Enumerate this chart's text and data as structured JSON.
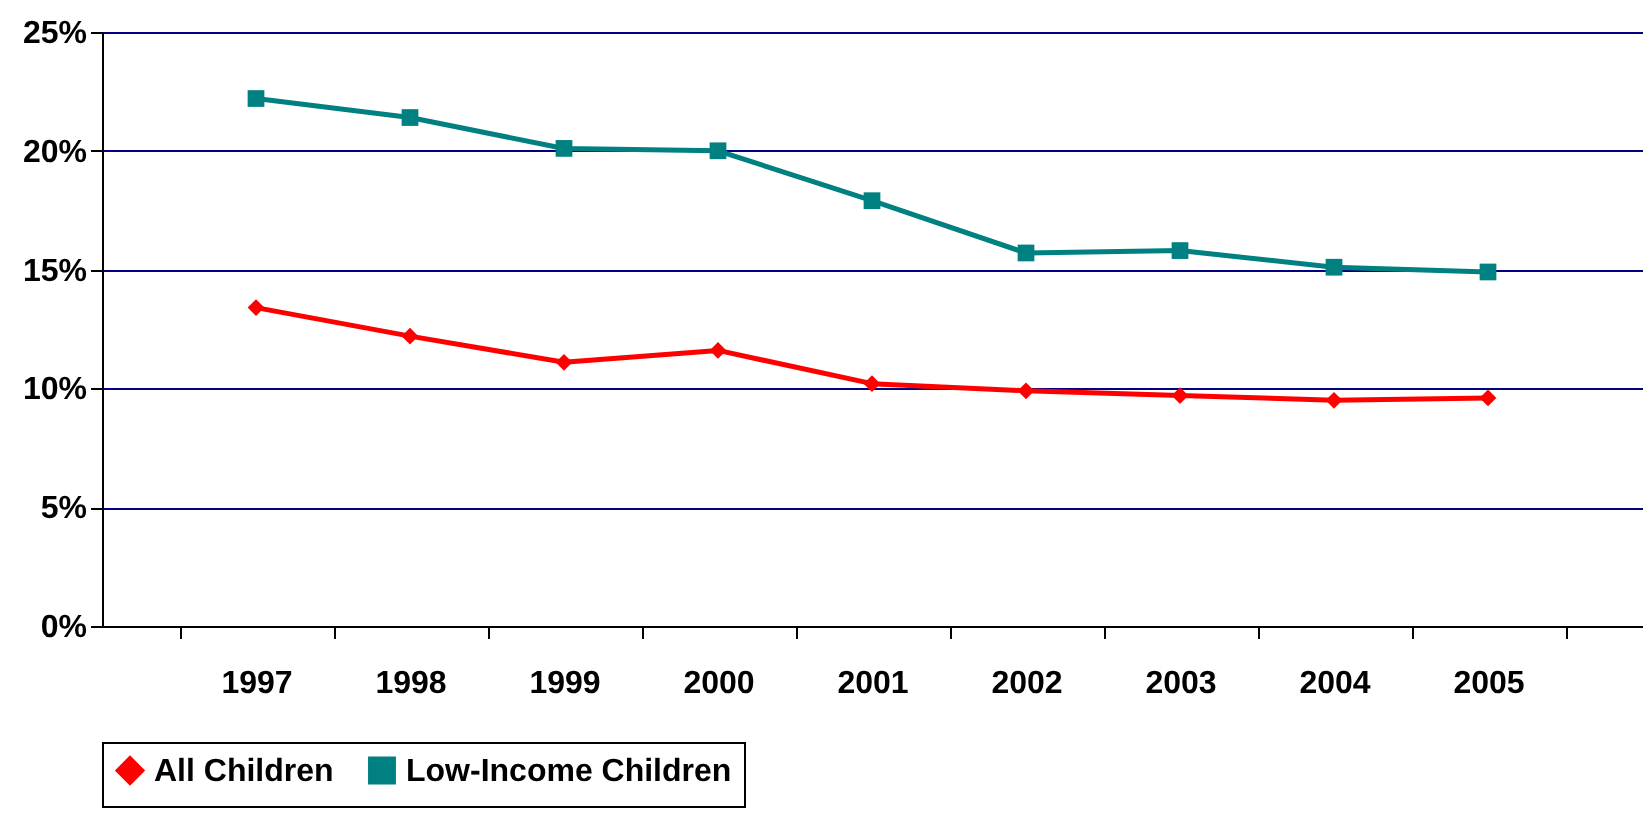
{
  "chart_data": {
    "type": "line",
    "categories": [
      "1997",
      "1998",
      "1999",
      "2000",
      "2001",
      "2002",
      "2003",
      "2004",
      "2005"
    ],
    "series": [
      {
        "name": "All Children",
        "color": "#ff0000",
        "marker": "diamond",
        "values": [
          13.4,
          12.2,
          11.1,
          11.6,
          10.2,
          9.9,
          9.7,
          9.5,
          9.6
        ]
      },
      {
        "name": "Low-Income Children",
        "color": "#008080",
        "marker": "square",
        "values": [
          22.2,
          21.4,
          20.1,
          20.0,
          17.9,
          15.7,
          15.8,
          15.1,
          14.9
        ]
      }
    ],
    "ylim": [
      0,
      25
    ],
    "yticks": [
      {
        "value": 0,
        "label": "0%"
      },
      {
        "value": 5,
        "label": "5%"
      },
      {
        "value": 10,
        "label": "10%"
      },
      {
        "value": 15,
        "label": "15%"
      },
      {
        "value": 20,
        "label": "20%"
      },
      {
        "value": 25,
        "label": "25%"
      }
    ],
    "grid": "y",
    "legend": "bottom"
  }
}
